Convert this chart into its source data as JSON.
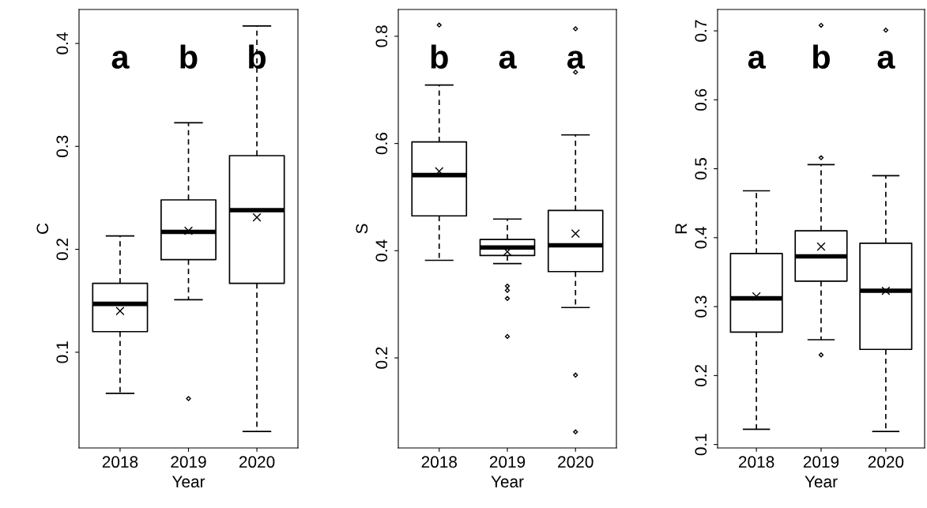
{
  "chart_data": [
    {
      "type": "box",
      "xlabel": "Year",
      "ylabel": "C",
      "categories": [
        "2018",
        "2019",
        "2020"
      ],
      "ylim": [
        0.007,
        0.433
      ],
      "yticks": [
        0.1,
        0.2,
        0.3,
        0.4
      ],
      "grid": false,
      "legend": false,
      "color": "#000000",
      "boxes": [
        {
          "low": 0.06,
          "q1": 0.12,
          "median": 0.147,
          "q3": 0.167,
          "high": 0.213,
          "mean": 0.14
        },
        {
          "low": 0.151,
          "q1": 0.19,
          "median": 0.217,
          "q3": 0.248,
          "high": 0.323,
          "mean": 0.218,
          "outliers": [
            0.055
          ]
        },
        {
          "low": 0.023,
          "q1": 0.167,
          "median": 0.238,
          "q3": 0.291,
          "high": 0.417,
          "mean": 0.231
        }
      ],
      "annotations": [
        "a",
        "b",
        "b"
      ]
    },
    {
      "type": "box",
      "xlabel": "Year",
      "ylabel": "S",
      "categories": [
        "2018",
        "2019",
        "2020"
      ],
      "ylim": [
        0.032,
        0.85
      ],
      "yticks": [
        0.2,
        0.4,
        0.6,
        0.8
      ],
      "grid": false,
      "legend": false,
      "color": "#000000",
      "boxes": [
        {
          "low": 0.382,
          "q1": 0.465,
          "median": 0.541,
          "q3": 0.603,
          "high": 0.709,
          "mean": 0.548,
          "outliers": [
            0.821
          ]
        },
        {
          "low": 0.376,
          "q1": 0.391,
          "median": 0.406,
          "q3": 0.421,
          "high": 0.459,
          "mean": 0.398,
          "outliers": [
            0.334,
            0.326,
            0.311,
            0.24
          ]
        },
        {
          "low": 0.294,
          "q1": 0.361,
          "median": 0.41,
          "q3": 0.475,
          "high": 0.616,
          "mean": 0.432,
          "outliers": [
            0.814,
            0.733,
            0.168,
            0.062
          ]
        }
      ],
      "annotations": [
        "b",
        "a",
        "a"
      ]
    },
    {
      "type": "box",
      "xlabel": "Year",
      "ylabel": "R",
      "categories": [
        "2018",
        "2019",
        "2020"
      ],
      "ylim": [
        0.095,
        0.731
      ],
      "yticks": [
        0.1,
        0.2,
        0.3,
        0.4,
        0.5,
        0.6,
        0.7
      ],
      "grid": false,
      "legend": false,
      "color": "#000000",
      "boxes": [
        {
          "low": 0.122,
          "q1": 0.263,
          "median": 0.312,
          "q3": 0.377,
          "high": 0.468,
          "mean": 0.315
        },
        {
          "low": 0.252,
          "q1": 0.337,
          "median": 0.373,
          "q3": 0.41,
          "high": 0.506,
          "mean": 0.387,
          "outliers": [
            0.708,
            0.516,
            0.23
          ]
        },
        {
          "low": 0.119,
          "q1": 0.238,
          "median": 0.323,
          "q3": 0.392,
          "high": 0.49,
          "mean": 0.323,
          "outliers": [
            0.701
          ]
        }
      ],
      "annotations": [
        "a",
        "b",
        "a"
      ]
    }
  ]
}
